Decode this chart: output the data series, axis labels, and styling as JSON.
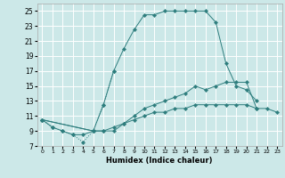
{
  "xlabel": "Humidex (Indice chaleur)",
  "bg_color": "#cce8e8",
  "grid_color": "#ffffff",
  "line_color": "#2d7d7d",
  "xlim": [
    -0.5,
    23.5
  ],
  "ylim": [
    7,
    26
  ],
  "xticks": [
    0,
    1,
    2,
    3,
    4,
    5,
    6,
    7,
    8,
    9,
    10,
    11,
    12,
    13,
    14,
    15,
    16,
    17,
    18,
    19,
    20,
    21,
    22,
    23
  ],
  "yticks": [
    7,
    9,
    11,
    13,
    15,
    17,
    19,
    21,
    23,
    25
  ],
  "line1_x": [
    0,
    1,
    2,
    3,
    4,
    5,
    6,
    7
  ],
  "line1_y": [
    10.5,
    9.5,
    9.0,
    8.5,
    7.5,
    9.0,
    12.5,
    17.0
  ],
  "line2_x": [
    0,
    1,
    2,
    3,
    4,
    5,
    6,
    7,
    8,
    9,
    10,
    11,
    12,
    13,
    14,
    15,
    16,
    17,
    18,
    19,
    20,
    21
  ],
  "line2_y": [
    10.5,
    9.5,
    9.0,
    8.5,
    8.5,
    9.0,
    12.5,
    17.0,
    20.0,
    22.5,
    24.5,
    24.5,
    25.0,
    25.0,
    25.0,
    25.0,
    25.0,
    23.5,
    18.0,
    15.0,
    14.5,
    13.0
  ],
  "line3_x": [
    0,
    5,
    6,
    7,
    8,
    9,
    10,
    11,
    12,
    13,
    14,
    15,
    16,
    17,
    18,
    19,
    20,
    21
  ],
  "line3_y": [
    10.5,
    9.0,
    9.0,
    9.0,
    10.0,
    11.0,
    12.0,
    12.5,
    13.0,
    13.5,
    14.0,
    15.0,
    14.5,
    15.0,
    15.5,
    15.5,
    15.5,
    12.0
  ],
  "line4_x": [
    0,
    5,
    6,
    7,
    8,
    9,
    10,
    11,
    12,
    13,
    14,
    15,
    16,
    17,
    18,
    19,
    20,
    21,
    22,
    23
  ],
  "line4_y": [
    10.5,
    9.0,
    9.0,
    9.5,
    10.0,
    10.5,
    11.0,
    11.5,
    11.5,
    12.0,
    12.0,
    12.5,
    12.5,
    12.5,
    12.5,
    12.5,
    12.5,
    12.0,
    12.0,
    11.5
  ]
}
